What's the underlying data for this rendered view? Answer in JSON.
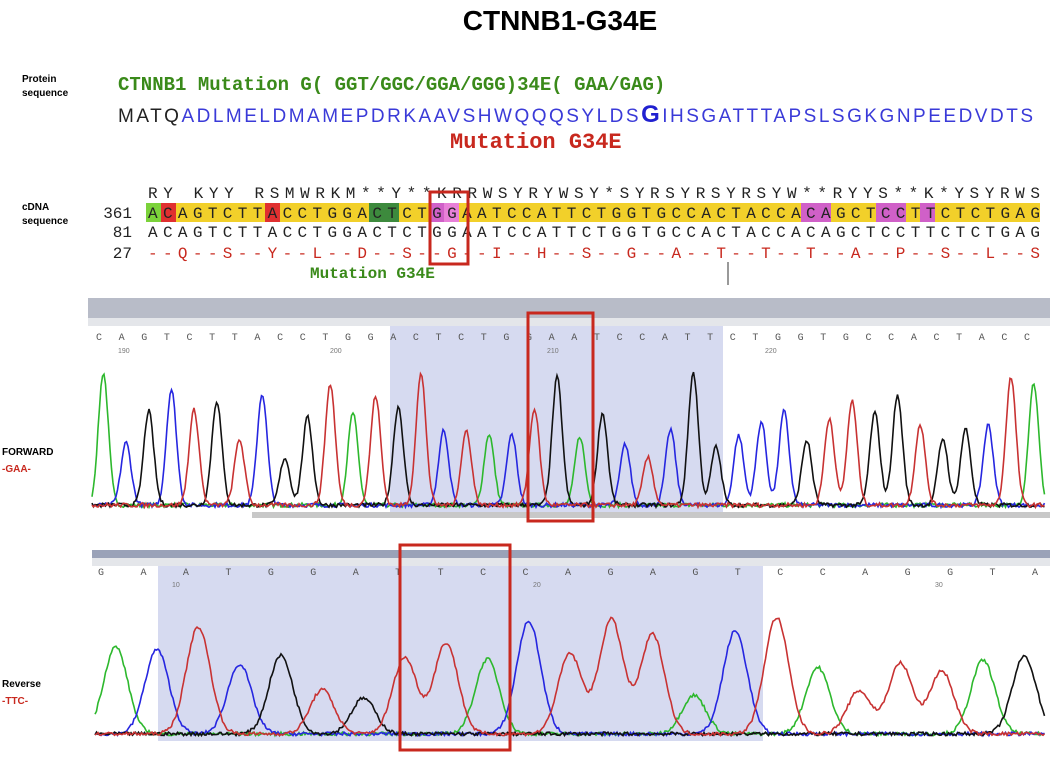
{
  "title": "CTNNB1-G34E",
  "protein": {
    "label_line1": "Protein",
    "label_line2": "sequence",
    "header": "CTNNB1 Mutation G( GGT/GGC/GGA/GGG)34E( GAA/GAG)",
    "sequence": [
      "MATQ",
      "ADLMELDMAMEPDRKAAVSHWQQQSYLDS",
      "G",
      "IHSGATTTAPSLSGKGNPEEDVDTS"
    ],
    "mutation": "Mutation G34E"
  },
  "cdna": {
    "label_line1": "cDNA",
    "label_line2": "sequence",
    "ambiguity": "RY  KYY  RSMWRKM**Y**KRRWSYRYWSY*SYRSYRSYRSYW**RYYS**K*YSYRWS",
    "rows": [
      {
        "number": "361",
        "sequence": "ACAGTCTTACCTGGACTCTGGAATCCATTCTGGTGCCACTACCACAGCTCCTTCTCTGAG"
      },
      {
        "number": "81",
        "sequence": "ACAGTCTTACCTGGACTCTGGAATCCATTCTGGTGCCACTACCACAGCTCCTTCTCTGAG"
      },
      {
        "number": "27",
        "sequence": "--Q--S--Y--L--D--S--G--I--H--S--G--A--T--T--T--A--P--S--L--S"
      }
    ],
    "mutation": "Mutation G34E"
  },
  "forward": {
    "label": "FORWARD",
    "codon": "-GAA-",
    "bases": "CAGTCTTACCTGGACTCTGGAATCCATTCTGGTGCCACTACC",
    "positions": [
      "190",
      "200",
      "210",
      "220"
    ]
  },
  "reverse": {
    "label": "Reverse",
    "codon": "-TTC-",
    "bases": "GAATGGATTCCAGAGTCCAGGTA",
    "positions": [
      "10",
      "20",
      "30"
    ]
  }
}
